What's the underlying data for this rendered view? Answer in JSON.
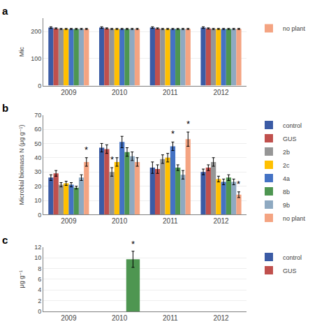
{
  "chart_data": [
    {
      "type": "bar",
      "title": "a",
      "ylabel": "Mic",
      "categories": [
        "2009",
        "2010",
        "2011",
        "2012"
      ],
      "series": [
        {
          "color": "#3B5BA5",
          "values": [
            215,
            215,
            215,
            215
          ],
          "errors": [
            3,
            3,
            3,
            3
          ]
        },
        {
          "color": "#C0504D",
          "values": [
            212,
            212,
            212,
            212
          ],
          "errors": [
            2,
            2,
            2,
            2
          ]
        },
        {
          "color": "#969696",
          "values": [
            210,
            210,
            210,
            210
          ],
          "errors": [
            2,
            2,
            2,
            2
          ]
        },
        {
          "color": "#FFC000",
          "values": [
            210,
            210,
            210,
            210
          ],
          "errors": [
            2,
            2,
            2,
            2
          ]
        },
        {
          "color": "#4472C4",
          "values": [
            210,
            210,
            210,
            210
          ],
          "errors": [
            2,
            2,
            2,
            2
          ]
        },
        {
          "color": "#4E9651",
          "values": [
            210,
            210,
            210,
            210
          ],
          "errors": [
            2,
            2,
            2,
            2
          ]
        },
        {
          "color": "#8EA9C1",
          "values": [
            210,
            210,
            210,
            210
          ],
          "errors": [
            2,
            2,
            2,
            2
          ]
        },
        {
          "name": "no plant",
          "color": "#F4A482",
          "values": [
            210,
            210,
            210,
            210
          ],
          "errors": [
            2,
            2,
            2,
            2
          ]
        }
      ],
      "ylim": [
        0,
        250
      ],
      "yticks": [
        0,
        100,
        200
      ],
      "grid": true,
      "legend": "right"
    },
    {
      "type": "bar",
      "title": "b",
      "ylabel": "Microbial biomass N (μg g⁻¹)",
      "categories": [
        "2009",
        "2010",
        "2011",
        "2012"
      ],
      "series": [
        {
          "name": "control",
          "color": "#3B5BA5",
          "values": [
            26,
            47,
            33,
            30
          ],
          "errors": [
            2,
            3,
            4,
            2
          ]
        },
        {
          "name": "GUS",
          "color": "#C0504D",
          "values": [
            29,
            46,
            32,
            33
          ],
          "errors": [
            2,
            3,
            3,
            2
          ]
        },
        {
          "name": "2b",
          "color": "#969696",
          "values": [
            21,
            30,
            39,
            37
          ],
          "errors": [
            1.5,
            3,
            3,
            3
          ]
        },
        {
          "name": "2c",
          "color": "#FFC000",
          "values": [
            22,
            37,
            40,
            25
          ],
          "errors": [
            1.5,
            3,
            3,
            2
          ]
        },
        {
          "name": "4a",
          "color": "#4472C4",
          "values": [
            21,
            51,
            48,
            23
          ],
          "errors": [
            1.5,
            4,
            3,
            2
          ]
        },
        {
          "name": "8b",
          "color": "#4E9651",
          "values": [
            19,
            44,
            33,
            26
          ],
          "errors": [
            1,
            3,
            2,
            2
          ]
        },
        {
          "name": "9b",
          "color": "#8EA9C1",
          "values": [
            26,
            41,
            28,
            23
          ],
          "errors": [
            2,
            3,
            3,
            2
          ]
        },
        {
          "name": "no plant",
          "color": "#F4A482",
          "values": [
            37,
            37,
            53,
            14
          ],
          "errors": [
            3,
            3,
            5,
            2
          ]
        }
      ],
      "annotations": [
        {
          "text": "*",
          "category": "2009",
          "series": 7,
          "y": 41
        },
        {
          "text": "*",
          "category": "2010",
          "series": 2,
          "y": 34
        },
        {
          "text": "*",
          "category": "2011",
          "series": 4,
          "y": 52
        },
        {
          "text": "*",
          "category": "2011",
          "series": 7,
          "y": 59
        },
        {
          "text": "*",
          "category": "2012",
          "series": 7,
          "y": 17
        }
      ],
      "ylim": [
        0,
        70
      ],
      "yticks": [
        0,
        10,
        20,
        30,
        40,
        50,
        60,
        70
      ],
      "grid": true,
      "legend": "right"
    },
    {
      "type": "bar",
      "title": "c",
      "ylabel": "μg g⁻¹",
      "categories": [
        "2009",
        "2010",
        "2011",
        "2012"
      ],
      "series": [
        {
          "name": "control",
          "color": "#3B5BA5",
          "values": [
            null,
            null,
            null,
            null
          ]
        },
        {
          "name": "GUS",
          "color": "#C0504D",
          "values": [
            null,
            null,
            null,
            null
          ]
        },
        {
          "color": "#4E9651",
          "values": [
            null,
            9.7,
            null,
            null
          ],
          "errors_upper": [
            null,
            1.5,
            null,
            null
          ],
          "errors_lower": [
            null,
            1.5,
            null,
            null
          ]
        }
      ],
      "annotations": [
        {
          "text": "*",
          "category": "2010",
          "series": 2,
          "y": 11.3
        }
      ],
      "ylim": [
        0,
        12
      ],
      "yticks": [
        0,
        2,
        4,
        6,
        8,
        10,
        12
      ],
      "grid": true,
      "legend": "right"
    }
  ]
}
